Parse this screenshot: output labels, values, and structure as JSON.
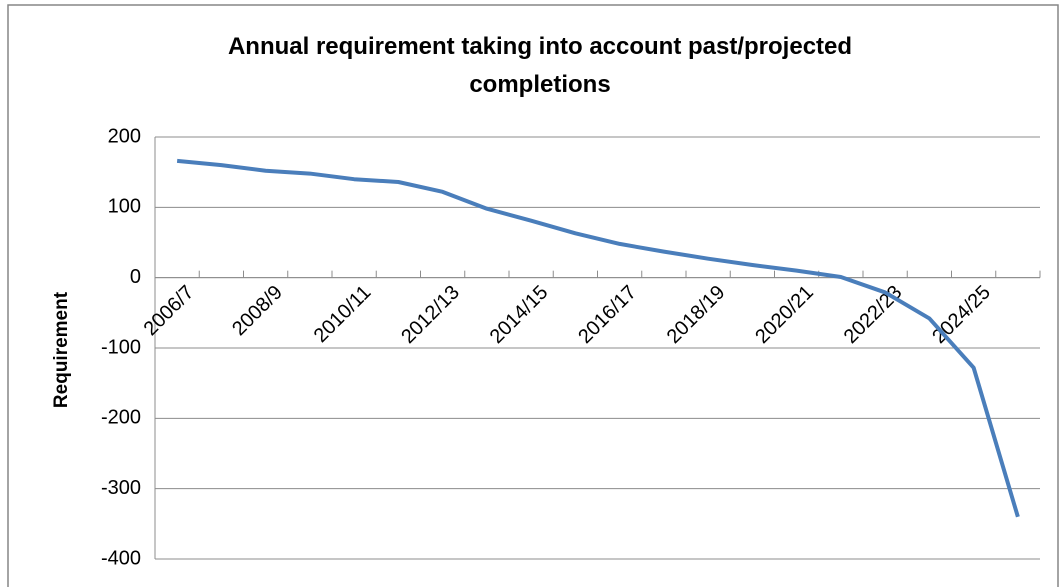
{
  "chart_data": {
    "type": "line",
    "title": "Annual requirement taking into account past/projected completions",
    "y_label": "Requirement",
    "categories": [
      "2006/7",
      null,
      "2008/9",
      null,
      "2010/11",
      null,
      "2012/13",
      null,
      "2014/15",
      null,
      "2016/17",
      null,
      "2018/19",
      null,
      "2020/21",
      null,
      "2022/23",
      null,
      "2024/25",
      null
    ],
    "series": [
      {
        "name": "Requirement",
        "color": "#4a7ebb",
        "values": [
          166,
          160,
          152,
          148,
          140,
          136,
          122,
          98,
          81,
          63,
          48,
          37,
          27,
          18,
          10,
          1,
          -21,
          -58,
          -128,
          -340
        ]
      }
    ],
    "ylim": [
      -400,
      200
    ],
    "yticks": [
      -400,
      -300,
      -200,
      -100,
      0,
      100,
      200
    ],
    "grid": true
  }
}
